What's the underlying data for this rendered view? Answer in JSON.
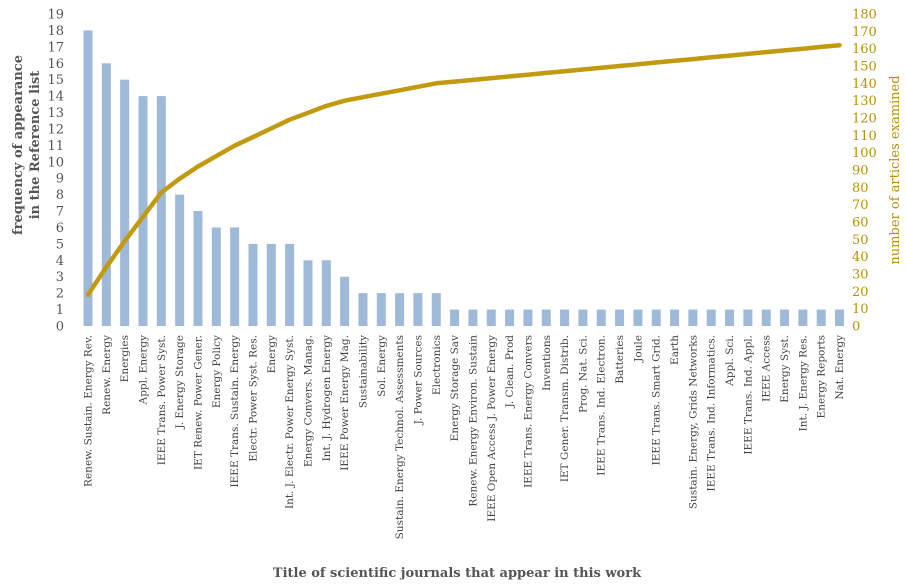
{
  "chart_data": {
    "type": "bar",
    "xlabel": "Title of scientific journals that appear in this work",
    "ylabel_left": "frequency of appearance\nin the Reference list",
    "ylabel_right": "number of articles examined",
    "ylim_left": [
      0,
      19
    ],
    "ylim_right": [
      0,
      180
    ],
    "yticks_left": [
      0,
      1,
      2,
      3,
      4,
      5,
      6,
      7,
      8,
      9,
      10,
      11,
      12,
      13,
      14,
      15,
      16,
      17,
      18,
      19
    ],
    "yticks_right": [
      0,
      10,
      20,
      30,
      40,
      50,
      60,
      70,
      80,
      90,
      100,
      110,
      120,
      130,
      140,
      150,
      160,
      170,
      180
    ],
    "grid": false,
    "categories": [
      "Renew. Sustain. Energy Rev.",
      "Renew. Energy",
      "Energies",
      "Appl. Energy",
      "IEEE Trans. Power Syst.",
      "J. Energy Storage",
      "IET Renew. Power Gener.",
      "Energy Policy",
      "IEEE Trans. Sustain. Energy",
      "Electr. Power Syst. Res.",
      "Energy",
      "Int. J. Electr. Power Energy Syst.",
      "Energy Convers. Manag.",
      "Int. J. Hydrogen Energy",
      "IEEE Power Energy Mag.",
      "Sustainability",
      "Sol. Energy",
      "Sustain. Energy Technol. Assessments",
      "J. Power Sources",
      "Electronics",
      "Energy Storage Sav",
      "Renew. Energy Environ. Sustain",
      "IEEE Open Access J. Power Energy",
      "J. Clean. Prod",
      "IEEE Trans. Energy Convers",
      "Inventions",
      "IET Gener. Transm. Distrib.",
      "Prog. Nat. Sci.",
      "IEEE Trans. Ind. Electron.",
      "Batteries",
      "Joule",
      "IEEE Trans. Smart Grid.",
      "Earth",
      "Sustain. Energy, Grids Networks",
      "IEEE Trans. Ind. Informatics.",
      "Appl. Sci.",
      "IEEE Trans. Ind. Appl.",
      "IEEE Access",
      "Energy Syst.",
      "Int. J. Energy Res.",
      "Energy Reports",
      "Nat. Energy"
    ],
    "series": [
      {
        "type": "bar",
        "axis": "left",
        "color": "#9fb9d8",
        "values": [
          18,
          16,
          15,
          14,
          14,
          8,
          7,
          6,
          6,
          5,
          5,
          5,
          4,
          4,
          3,
          2,
          2,
          2,
          2,
          2,
          1,
          1,
          1,
          1,
          1,
          1,
          1,
          1,
          1,
          1,
          1,
          1,
          1,
          1,
          1,
          1,
          1,
          1,
          1,
          1,
          1,
          1
        ]
      },
      {
        "type": "line",
        "axis": "right",
        "color": "#c29a10",
        "values": [
          18,
          34,
          49,
          63,
          77,
          85,
          92,
          98,
          104,
          109,
          114,
          119,
          123,
          127,
          130,
          132,
          134,
          136,
          138,
          140,
          141,
          142,
          143,
          144,
          145,
          146,
          147,
          148,
          149,
          150,
          151,
          152,
          153,
          154,
          155,
          156,
          157,
          158,
          159,
          160,
          161,
          162
        ]
      }
    ]
  }
}
